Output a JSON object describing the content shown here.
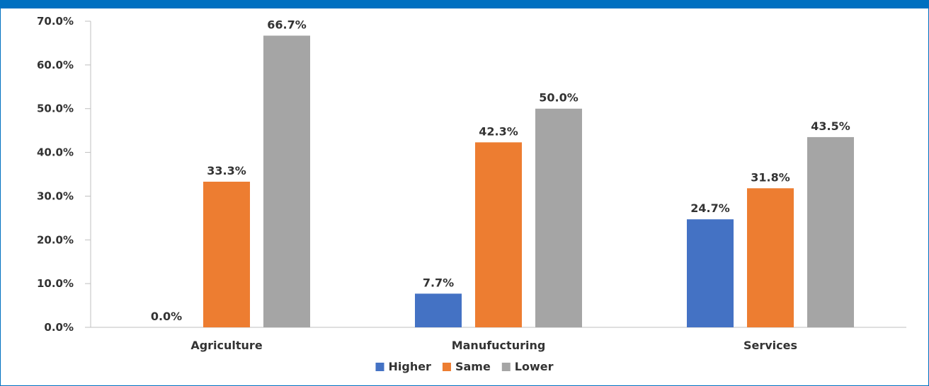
{
  "chart_data": {
    "type": "bar",
    "categories": [
      "Agriculture",
      "Manufucturing",
      "Services"
    ],
    "series": [
      {
        "name": "Higher",
        "color": "#4472c4",
        "values": [
          0.0,
          7.7,
          24.7
        ],
        "labels": [
          "0.0%",
          "7.7%",
          "24.7%"
        ]
      },
      {
        "name": "Same",
        "color": "#ed7d31",
        "values": [
          33.3,
          42.3,
          31.8
        ],
        "labels": [
          "33.3%",
          "42.3%",
          "31.8%"
        ]
      },
      {
        "name": "Lower",
        "color": "#a5a5a5",
        "values": [
          66.7,
          50.0,
          43.5
        ],
        "labels": [
          "66.7%",
          "50.0%",
          "43.5%"
        ]
      }
    ],
    "yticks": [
      "0.0%",
      "10.0%",
      "20.0%",
      "30.0%",
      "40.0%",
      "50.0%",
      "60.0%",
      "70.0%"
    ],
    "ylim": [
      0,
      70
    ],
    "grid": false,
    "legend_position": "bottom"
  },
  "frame_color": "#0070c0"
}
